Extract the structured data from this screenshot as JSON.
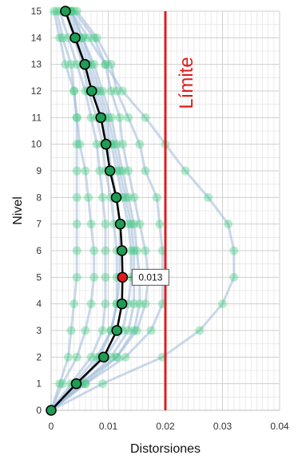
{
  "chart_data": {
    "type": "line",
    "xlabel": "Distorsiones",
    "ylabel": "Nivel",
    "xlim": [
      0,
      0.04
    ],
    "ylim": [
      0,
      15
    ],
    "x_ticks": [
      "0",
      "0.01",
      "0.02",
      "0.03",
      "0.04"
    ],
    "y_ticks": [
      "0",
      "1",
      "2",
      "3",
      "4",
      "5",
      "6",
      "7",
      "8",
      "9",
      "10",
      "11",
      "12",
      "13",
      "14",
      "15"
    ],
    "grid": true,
    "colors": {
      "records": "#9fbad8",
      "record_points": "#2ecc71",
      "mean_line": "#000000",
      "mean_points": "#1f9d55",
      "max_point": "#e01b1b",
      "limit": "#e01b1b"
    },
    "limit": {
      "x": 0.02,
      "label": "Límite"
    },
    "max_annotation": {
      "x": 0.0125,
      "y": 5,
      "label": "0.013"
    },
    "mean": {
      "levels": [
        0,
        1,
        2,
        3,
        4,
        5,
        6,
        7,
        8,
        9,
        10,
        11,
        12,
        13,
        14,
        15
      ],
      "values": [
        0,
        0.0044,
        0.0092,
        0.0115,
        0.0124,
        0.0125,
        0.0124,
        0.0121,
        0.0114,
        0.0103,
        0.0096,
        0.0087,
        0.0071,
        0.0059,
        0.0042,
        0.0025
      ]
    },
    "series": [
      {
        "values": [
          0,
          0.0015,
          0.003,
          0.0035,
          0.004,
          0.0045,
          0.0045,
          0.0045,
          0.0045,
          0.0045,
          0.0045,
          0.0045,
          0.004,
          0.0025,
          0.0015,
          0.0005
        ]
      },
      {
        "values": [
          0,
          0.002,
          0.0045,
          0.006,
          0.007,
          0.0075,
          0.0075,
          0.007,
          0.0065,
          0.006,
          0.005,
          0.0045,
          0.004,
          0.0035,
          0.002,
          0.001
        ]
      },
      {
        "values": [
          0,
          0.0035,
          0.007,
          0.009,
          0.0095,
          0.0095,
          0.0095,
          0.0095,
          0.009,
          0.0085,
          0.008,
          0.007,
          0.006,
          0.0045,
          0.003,
          0.0015
        ]
      },
      {
        "values": [
          0,
          0.004,
          0.008,
          0.0105,
          0.0115,
          0.012,
          0.012,
          0.012,
          0.0115,
          0.0105,
          0.01,
          0.009,
          0.0075,
          0.006,
          0.0045,
          0.0025
        ]
      },
      {
        "values": [
          0,
          0.0045,
          0.0095,
          0.0125,
          0.0135,
          0.014,
          0.014,
          0.0135,
          0.0125,
          0.0115,
          0.0105,
          0.0095,
          0.008,
          0.0065,
          0.005,
          0.003
        ]
      },
      {
        "values": [
          0,
          0.0055,
          0.0105,
          0.0135,
          0.0145,
          0.0145,
          0.0145,
          0.014,
          0.013,
          0.012,
          0.011,
          0.01,
          0.0085,
          0.007,
          0.0055,
          0.0035
        ]
      },
      {
        "values": [
          0,
          0.006,
          0.0115,
          0.0145,
          0.0155,
          0.0155,
          0.015,
          0.0145,
          0.0135,
          0.0125,
          0.0115,
          0.0105,
          0.009,
          0.0075,
          0.0055,
          0.0035
        ]
      },
      {
        "values": [
          0,
          0.005,
          0.0085,
          0.0105,
          0.0115,
          0.0115,
          0.0115,
          0.011,
          0.0105,
          0.0095,
          0.009,
          0.008,
          0.0065,
          0.0055,
          0.004,
          0.0025
        ]
      },
      {
        "values": [
          0,
          0.005,
          0.0115,
          0.015,
          0.0165,
          0.017,
          0.0165,
          0.0155,
          0.0145,
          0.0135,
          0.0125,
          0.012,
          0.0105,
          0.0095,
          0.0075,
          0.004
        ]
      },
      {
        "values": [
          0,
          0.006,
          0.013,
          0.0175,
          0.0195,
          0.0195,
          0.0195,
          0.019,
          0.0185,
          0.0165,
          0.0155,
          0.0135,
          0.0115,
          0.0105,
          0.008,
          0.0045
        ]
      },
      {
        "values": [
          0,
          0.009,
          0.0195,
          0.026,
          0.03,
          0.032,
          0.032,
          0.031,
          0.0275,
          0.0235,
          0.02,
          0.0165,
          0.0125,
          0.0095,
          0.0065,
          0.0035
        ]
      }
    ]
  }
}
